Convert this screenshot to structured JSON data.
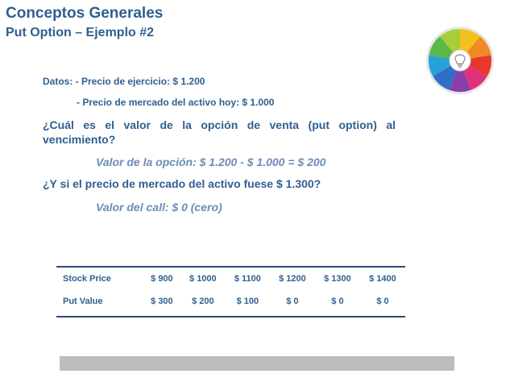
{
  "header": {
    "title": "Conceptos Generales",
    "subtitle": "Put Option – Ejemplo #2"
  },
  "logo": {
    "icon": "lightbulb-icon",
    "colors": [
      "#f4c020",
      "#f08a24",
      "#e8382c",
      "#e0307a",
      "#8a3fa8",
      "#2f6fc8",
      "#2aa0d8",
      "#5cb848",
      "#a6ce39"
    ]
  },
  "body": {
    "datos_line1": "Datos: - Precio de ejercicio: $ 1.200",
    "datos_line2": "- Precio de mercado del activo hoy: $ 1.000",
    "question1_line1": "¿Cuál es el valor de la opción de venta (put option) al",
    "question1_line2": "vencimiento?",
    "answer1": "Valor de la opción: $ 1.200 - $ 1.000 = $ 200",
    "question2": "¿Y si el precio de mercado del activo fuese $ 1.300?",
    "answer2": "Valor del call: $ 0 (cero)"
  },
  "table": {
    "rows": [
      {
        "label": "Stock Price",
        "values": [
          "$ 900",
          "$ 1000",
          "$ 1100",
          "$ 1200",
          "$ 1300",
          "$ 1400"
        ]
      },
      {
        "label": "Put Value",
        "values": [
          "$ 300",
          "$ 200",
          "$ 100",
          "$ 0",
          "$ 0",
          "$ 0"
        ]
      }
    ]
  },
  "accent_colors": {
    "title": "#2f5f8f",
    "answer": "#6b8db8",
    "table_rule": "#2f4a7a",
    "footer_bar": "#bdbdbd"
  }
}
